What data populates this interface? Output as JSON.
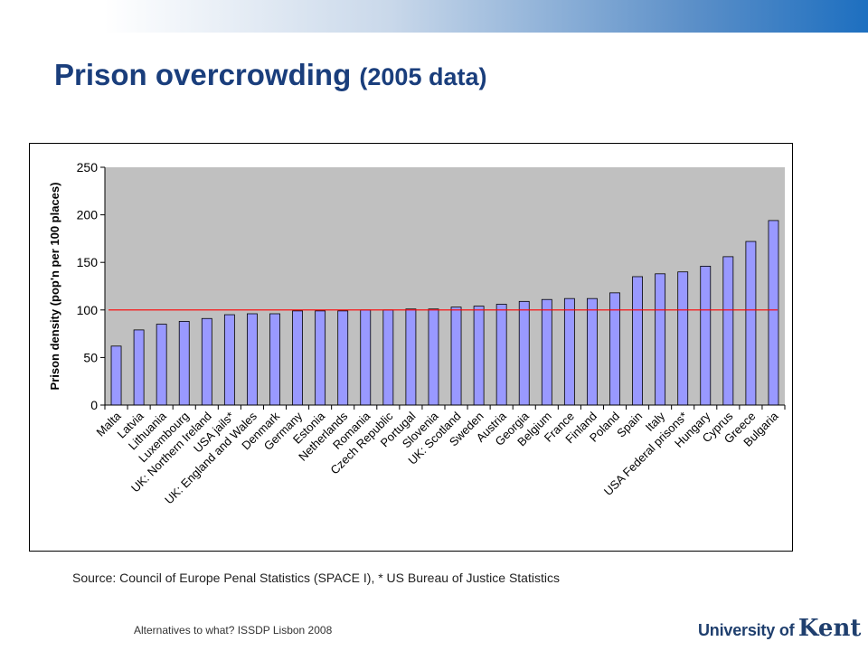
{
  "slide": {
    "title": "Prison overcrowding",
    "title_suffix": "(2005 data)",
    "source": "Source: Council of Europe Penal Statistics (SPACE I), * US Bureau of Justice Statistics",
    "footer": "Alternatives to what? ISSDP Lisbon 2008",
    "logo_text": "University of",
    "logo_name": "Kent"
  },
  "colors": {
    "title": "#1a3e7c",
    "bar_fill": "#9999ff",
    "bar_stroke": "#000000",
    "plot_bg": "#c0c0c0",
    "reference_line": "#ff0000",
    "band_end": "#1d6fc0"
  },
  "chart_data": {
    "type": "bar",
    "ylabel": "Prison density (pop'n per 100 places)",
    "xlabel": "",
    "ylim": [
      0,
      250
    ],
    "yticks": [
      0,
      50,
      100,
      150,
      200,
      250
    ],
    "grid": false,
    "legend": "none",
    "reference_line": 100,
    "categories": [
      "Malta",
      "Latvia",
      "Lithuania",
      "Luxembourg",
      "UK: Northern Ireland",
      "USA jails*",
      "UK: England and Wales",
      "Denmark",
      "Germany",
      "Estonia",
      "Netherlands",
      "Romania",
      "Czech Republic",
      "Portugal",
      "Slovenia",
      "UK: Scotland",
      "Sweden",
      "Austria",
      "Georgia",
      "Belgium",
      "France",
      "Finland",
      "Poland",
      "Spain",
      "Italy",
      "USA Federal prisons*",
      "Hungary",
      "Cyprus",
      "Greece",
      "Bulgaria"
    ],
    "values": [
      62,
      79,
      85,
      88,
      91,
      95,
      96,
      96,
      99,
      99,
      99,
      100,
      100,
      101,
      101,
      103,
      104,
      106,
      109,
      111,
      112,
      112,
      118,
      135,
      138,
      140,
      146,
      156,
      172,
      194
    ]
  }
}
